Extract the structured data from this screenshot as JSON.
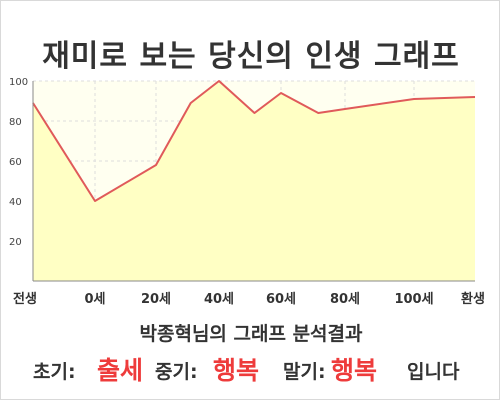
{
  "title": "재미로 보는 당신의 인생 그래프",
  "chart_data": {
    "type": "area",
    "x_labels": [
      "전생",
      "0세",
      "20세",
      "40세",
      "60세",
      "80세",
      "100세",
      "환생"
    ],
    "y_ticks": [
      20,
      40,
      60,
      80,
      100
    ],
    "ylim": [
      0,
      100
    ],
    "grid": true,
    "series": [
      {
        "points": [
          {
            "x": "전생",
            "y": 89
          },
          {
            "x": "0세",
            "y": 40
          },
          {
            "x": "20세",
            "y": 58
          },
          {
            "x": "30세",
            "y": 89
          },
          {
            "x": "40세",
            "y": 100
          },
          {
            "x": "50세",
            "y": 84
          },
          {
            "x": "60세",
            "y": 94
          },
          {
            "x": "70세",
            "y": 84
          },
          {
            "x": "80세",
            "y": 86
          },
          {
            "x": "100세",
            "y": 91
          },
          {
            "x": "환생",
            "y": 92
          }
        ],
        "line_color": "#e05a5a",
        "fill_color": "#ffffc4"
      }
    ],
    "background_color": "#fffff0"
  },
  "result": {
    "title": "박종혁님의 그래프 분석결과",
    "early_label": "초기:",
    "early_value": "출세",
    "mid_label": "중기:",
    "mid_value": "행복",
    "late_label": "말기:",
    "late_value": "행복",
    "ending": "입니다"
  }
}
